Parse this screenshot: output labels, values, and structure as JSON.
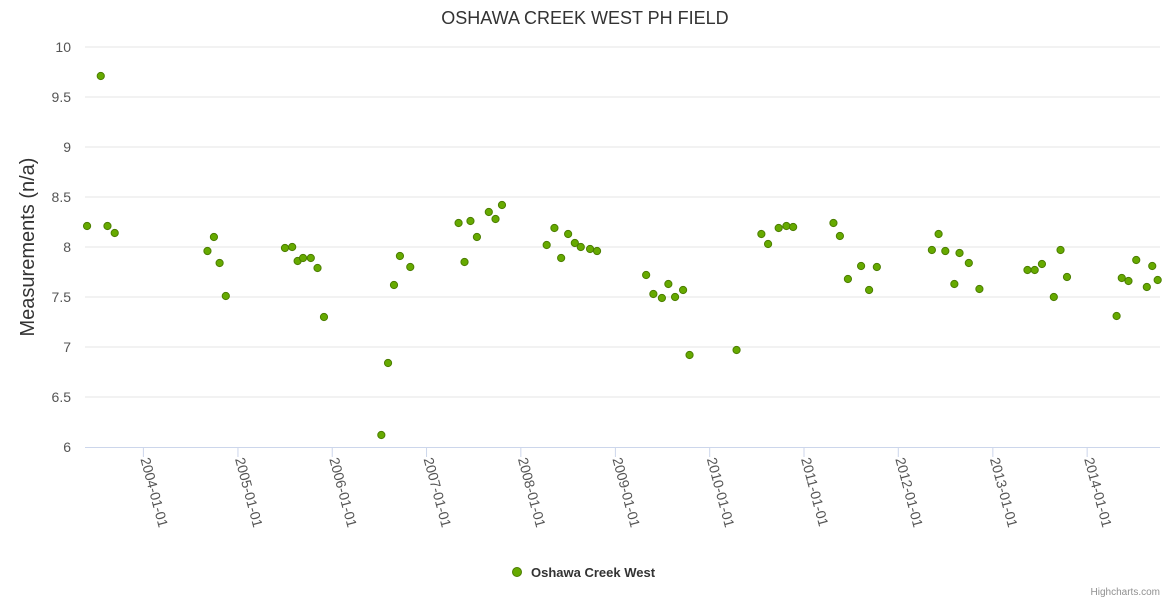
{
  "chart_data": {
    "type": "scatter",
    "title": "OSHAWA CREEK WEST PH FIELD",
    "xlabel": "",
    "ylabel": "Measurements (n/a)",
    "ylim": [
      6,
      10
    ],
    "yticks": [
      "6",
      "6.5",
      "7",
      "7.5",
      "8",
      "8.5",
      "9",
      "9.5",
      "10"
    ],
    "xlim": [
      "2003-05-20",
      "2014-10-10"
    ],
    "xticks": [
      "2004-01-01",
      "2005-01-01",
      "2006-01-01",
      "2007-01-01",
      "2008-01-01",
      "2009-01-01",
      "2010-01-01",
      "2011-01-01",
      "2012-01-01",
      "2013-01-01",
      "2014-01-01"
    ],
    "grid": true,
    "legend_position": "bottom-center",
    "colors": {
      "marker_fill": "#66aa00",
      "marker_stroke": "#4b7d00",
      "grid": "#e6e6e6",
      "axis": "#ccd6eb"
    },
    "series": [
      {
        "name": "Oshawa Creek West",
        "points": [
          [
            "2003-05-28",
            8.21
          ],
          [
            "2003-07-20",
            9.71
          ],
          [
            "2003-08-15",
            8.21
          ],
          [
            "2003-09-12",
            8.14
          ],
          [
            "2004-09-05",
            7.96
          ],
          [
            "2004-09-30",
            8.1
          ],
          [
            "2004-10-22",
            7.84
          ],
          [
            "2004-11-15",
            7.51
          ],
          [
            "2005-07-02",
            7.99
          ],
          [
            "2005-07-30",
            8.0
          ],
          [
            "2005-08-20",
            7.86
          ],
          [
            "2005-09-10",
            7.89
          ],
          [
            "2005-10-10",
            7.89
          ],
          [
            "2005-11-05",
            7.79
          ],
          [
            "2005-11-30",
            7.3
          ],
          [
            "2006-07-10",
            6.12
          ],
          [
            "2006-08-05",
            6.84
          ],
          [
            "2006-08-28",
            7.62
          ],
          [
            "2006-09-20",
            7.91
          ],
          [
            "2006-10-30",
            7.8
          ],
          [
            "2007-05-05",
            8.24
          ],
          [
            "2007-05-28",
            7.85
          ],
          [
            "2007-06-20",
            8.26
          ],
          [
            "2007-07-15",
            8.1
          ],
          [
            "2007-08-30",
            8.35
          ],
          [
            "2007-09-25",
            8.28
          ],
          [
            "2007-10-20",
            8.42
          ],
          [
            "2008-04-10",
            8.02
          ],
          [
            "2008-05-10",
            8.19
          ],
          [
            "2008-06-05",
            7.89
          ],
          [
            "2008-07-02",
            8.13
          ],
          [
            "2008-07-28",
            8.04
          ],
          [
            "2008-08-20",
            8.0
          ],
          [
            "2008-09-25",
            7.98
          ],
          [
            "2008-10-22",
            7.96
          ],
          [
            "2009-04-30",
            7.72
          ],
          [
            "2009-05-28",
            7.53
          ],
          [
            "2009-06-30",
            7.49
          ],
          [
            "2009-07-25",
            7.63
          ],
          [
            "2009-08-20",
            7.5
          ],
          [
            "2009-09-20",
            7.57
          ],
          [
            "2009-10-15",
            6.92
          ],
          [
            "2010-04-15",
            6.97
          ],
          [
            "2010-07-20",
            8.13
          ],
          [
            "2010-08-15",
            8.03
          ],
          [
            "2010-09-25",
            8.19
          ],
          [
            "2010-10-25",
            8.21
          ],
          [
            "2010-11-20",
            8.2
          ],
          [
            "2011-04-25",
            8.24
          ],
          [
            "2011-05-20",
            8.11
          ],
          [
            "2011-06-20",
            7.68
          ],
          [
            "2011-08-10",
            7.81
          ],
          [
            "2011-09-10",
            7.57
          ],
          [
            "2011-10-10",
            7.8
          ],
          [
            "2012-05-10",
            7.97
          ],
          [
            "2012-06-05",
            8.13
          ],
          [
            "2012-07-01",
            7.96
          ],
          [
            "2012-08-05",
            7.63
          ],
          [
            "2012-08-25",
            7.94
          ],
          [
            "2012-09-30",
            7.84
          ],
          [
            "2012-11-10",
            7.58
          ],
          [
            "2013-05-15",
            7.77
          ],
          [
            "2013-06-12",
            7.77
          ],
          [
            "2013-07-10",
            7.83
          ],
          [
            "2013-08-25",
            7.5
          ],
          [
            "2013-09-20",
            7.97
          ],
          [
            "2013-10-15",
            7.7
          ],
          [
            "2014-04-25",
            7.31
          ],
          [
            "2014-05-15",
            7.69
          ],
          [
            "2014-06-10",
            7.66
          ],
          [
            "2014-07-10",
            7.87
          ],
          [
            "2014-08-20",
            7.6
          ],
          [
            "2014-09-10",
            7.81
          ],
          [
            "2014-10-01",
            7.67
          ]
        ]
      }
    ]
  },
  "credits": "Highcharts.com"
}
